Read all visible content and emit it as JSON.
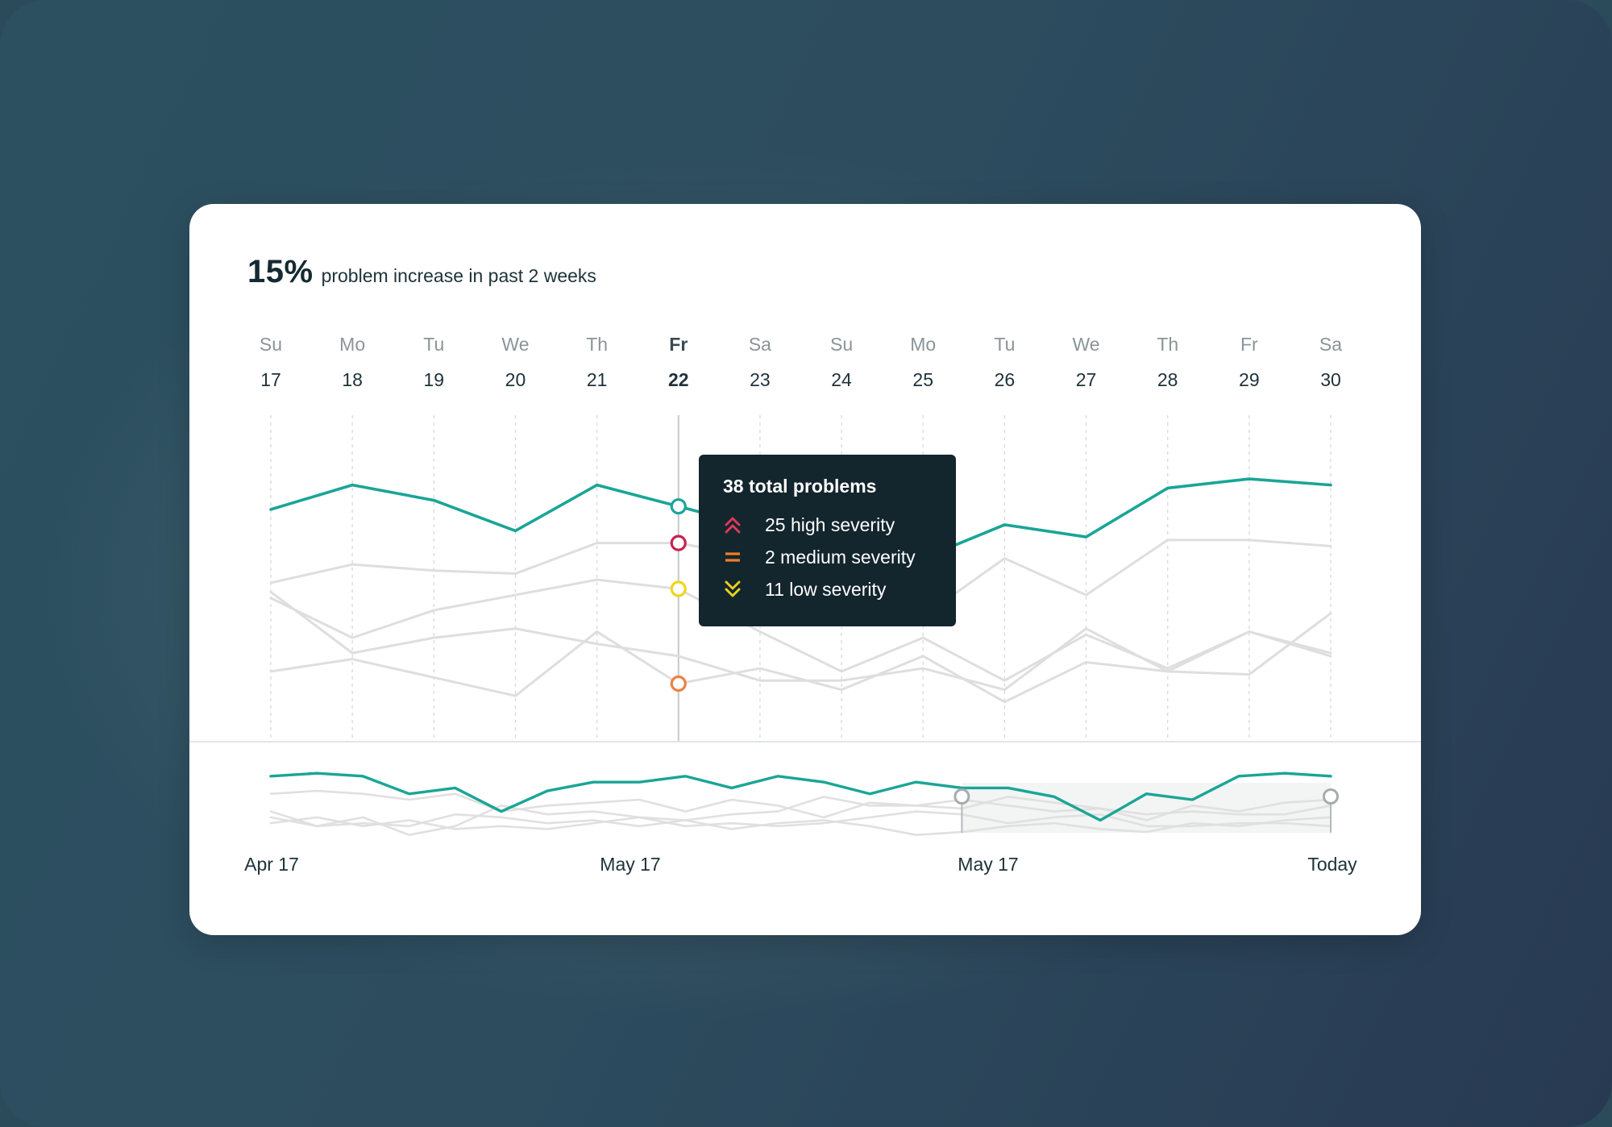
{
  "headline": {
    "percent": "15%",
    "text": "problem increase in past 2 weeks"
  },
  "chart_data": {
    "type": "line",
    "highlight_index": 5,
    "days": [
      {
        "dow": "Su",
        "num": "17"
      },
      {
        "dow": "Mo",
        "num": "18"
      },
      {
        "dow": "Tu",
        "num": "19"
      },
      {
        "dow": "We",
        "num": "20"
      },
      {
        "dow": "Th",
        "num": "21"
      },
      {
        "dow": "Fr",
        "num": "22"
      },
      {
        "dow": "Sa",
        "num": "23"
      },
      {
        "dow": "Su",
        "num": "24"
      },
      {
        "dow": "Mo",
        "num": "25"
      },
      {
        "dow": "Tu",
        "num": "26"
      },
      {
        "dow": "We",
        "num": "27"
      },
      {
        "dow": "Th",
        "num": "28"
      },
      {
        "dow": "Fr",
        "num": "29"
      },
      {
        "dow": "Sa",
        "num": "30"
      }
    ],
    "ylim": [
      0,
      50
    ],
    "series": [
      {
        "color": "#1aa597",
        "values": [
          38,
          42,
          39.5,
          34.5,
          42,
          38.5,
          35,
          33,
          30,
          35.5,
          33.5,
          41.5,
          43,
          42
        ]
      },
      {
        "color": "#dedede",
        "values": [
          26,
          29,
          28,
          27.5,
          32.5,
          32.5,
          30,
          27,
          20.5,
          30,
          24,
          33,
          33,
          32
        ]
      },
      {
        "color": "#dedede",
        "values": [
          23.5,
          17,
          21.5,
          24,
          26.5,
          25,
          18,
          11.5,
          17,
          10,
          17.5,
          12,
          18,
          14.5
        ]
      },
      {
        "color": "#dedede",
        "values": [
          11.5,
          13.5,
          10.5,
          7.5,
          18,
          9.5,
          12,
          8.5,
          14,
          6.5,
          13,
          11.5,
          11,
          21
        ]
      },
      {
        "color": "#dedede",
        "values": [
          24.5,
          14.5,
          17,
          18.5,
          16,
          14,
          10,
          10,
          12,
          8.5,
          18.5,
          11.5,
          18,
          14
        ]
      }
    ],
    "tooltip": {
      "title": "38 total problems",
      "items": [
        {
          "label": "25 high severity",
          "color": "#e03858",
          "icon": "double-chevron-up-icon"
        },
        {
          "label": "2 medium severity",
          "color": "#ef7d26",
          "icon": "equals-icon"
        },
        {
          "label": "11 low severity",
          "color": "#e9cf1e",
          "icon": "double-chevron-down-icon"
        }
      ]
    },
    "markers": [
      {
        "series_index": 0,
        "value": 38.5,
        "color": "#1aa597"
      },
      {
        "series_index": 1,
        "value": 32.5,
        "color": "#c8234c"
      },
      {
        "series_index": 2,
        "value": 25,
        "color": "#f2d41c"
      },
      {
        "series_index": 3,
        "value": 9.5,
        "color": "#ef8040"
      }
    ],
    "overview": {
      "series": [
        {
          "color": "#1aa597",
          "values": [
            9,
            9.5,
            9,
            6,
            7,
            3,
            6.5,
            8,
            8,
            9,
            7,
            9,
            8,
            6,
            8,
            7,
            7,
            5.5,
            1.5,
            6,
            5,
            9,
            9.5,
            9
          ]
        },
        {
          "color": "#dedede",
          "values": [
            6,
            6.5,
            6,
            5,
            6,
            3,
            4,
            4.5,
            5,
            3,
            5,
            4,
            2,
            4.5,
            4,
            3.5,
            5.5,
            4.5,
            3.5,
            2.5,
            3,
            2.5,
            2.5,
            4
          ]
        },
        {
          "color": "#dedede",
          "values": [
            3,
            0.5,
            2,
            -1,
            0.5,
            4,
            2.5,
            3,
            2,
            1.5,
            2.5,
            3,
            5.5,
            4,
            4,
            5,
            4,
            3,
            3.5,
            1.5,
            4,
            3,
            4.5,
            5
          ]
        },
        {
          "color": "#dedede",
          "values": [
            2,
            0.5,
            1,
            0.5,
            2.5,
            2,
            1,
            1.5,
            0.5,
            1.5,
            0,
            1,
            1.5,
            0.5,
            -1,
            -0.5,
            0.5,
            1,
            0,
            -0.5,
            1,
            0.5,
            1.5,
            2
          ]
        },
        {
          "color": "#dedede",
          "values": [
            1,
            2,
            0.5,
            1.5,
            0,
            0.5,
            0,
            1,
            2,
            0.5,
            1,
            0.5,
            1,
            2,
            3,
            2.5,
            1,
            2,
            2.5,
            0.5,
            0.5,
            1,
            1,
            0.5
          ]
        }
      ],
      "ylim": [
        -2,
        12
      ],
      "selection": [
        0.652,
        1.0
      ]
    },
    "overview_labels": [
      "Apr 17",
      "May 17",
      "May 17",
      "Today"
    ]
  }
}
